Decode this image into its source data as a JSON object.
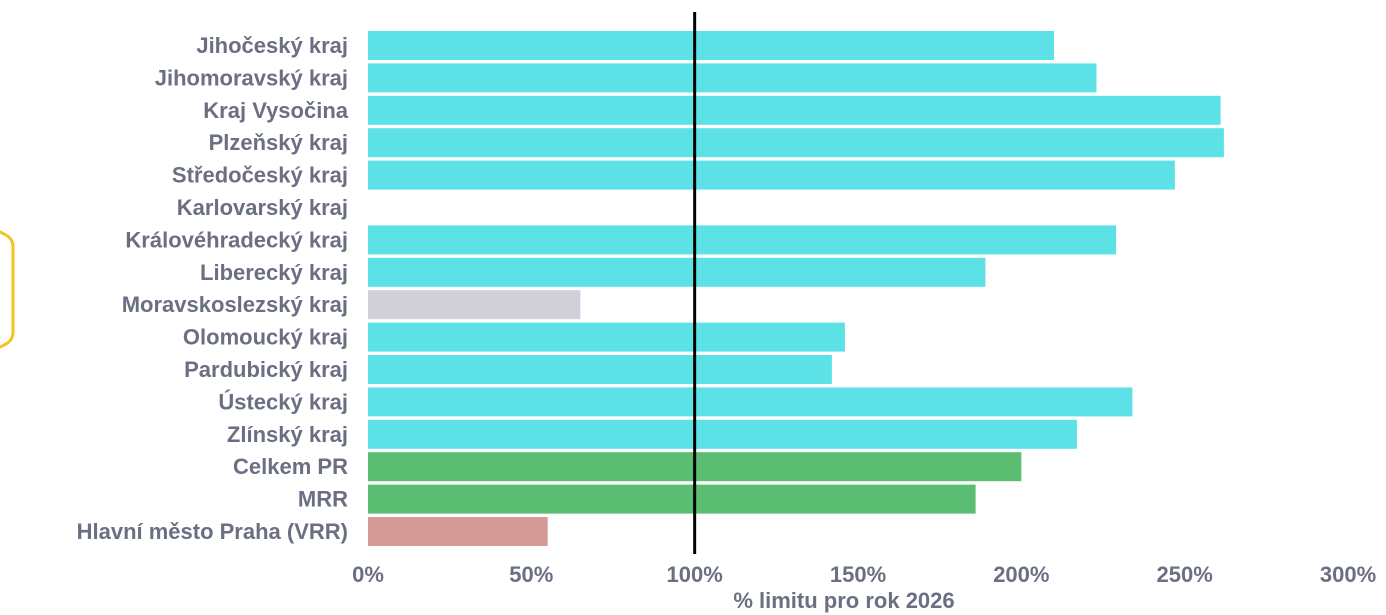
{
  "chart_data": {
    "type": "bar",
    "orientation": "horizontal",
    "categories": [
      "Jihočeský kraj",
      "Jihomoravský kraj",
      "Kraj Vysočina",
      "Plzeňský kraj",
      "Středočeský kraj",
      "Karlovarský kraj",
      "Královéhradecký kraj",
      "Liberecký kraj",
      "Moravskoslezský kraj",
      "Olomoucký kraj",
      "Pardubický kraj",
      "Ústecký kraj",
      "Zlínský kraj",
      "Celkem PR",
      "MRR",
      "Hlavní město Praha (VRR)"
    ],
    "values": [
      210,
      223,
      261,
      262,
      247,
      null,
      229,
      189,
      65,
      146,
      142,
      234,
      217,
      200,
      186,
      55
    ],
    "bar_colors": [
      "#5ce1e6",
      "#5ce1e6",
      "#5ce1e6",
      "#5ce1e6",
      "#5ce1e6",
      "#5ce1e6",
      "#5ce1e6",
      "#5ce1e6",
      "#cfd0d9",
      "#5ce1e6",
      "#5ce1e6",
      "#5ce1e6",
      "#5ce1e6",
      "#5bbd72",
      "#5bbd72",
      "#d49a98"
    ],
    "xlabel": "% limitu pro rok 2026",
    "ylabel": "",
    "xlim": [
      0,
      300
    ],
    "x_ticks": [
      "0%",
      "50%",
      "100%",
      "150%",
      "200%",
      "250%",
      "300%"
    ],
    "x_tick_values": [
      0,
      50,
      100,
      150,
      200,
      250,
      300
    ],
    "reference_line": 100,
    "reference_line_color": "#000000",
    "grid": false,
    "legend": "none",
    "label_color": "#6b6f82",
    "highlight_bracket_color": "#f2c41c"
  }
}
